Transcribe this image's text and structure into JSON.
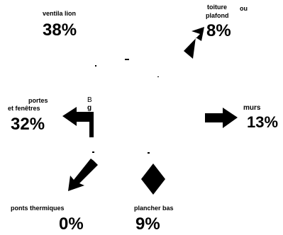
{
  "segments": [
    {
      "id": "ventilation",
      "label": "ventila lion",
      "value": "38%"
    },
    {
      "id": "roof",
      "label_line1": "toiture",
      "label_or": "ou",
      "label_line2": "plafond",
      "value": "8%"
    },
    {
      "id": "doors-windows",
      "label_line1": "portes",
      "label_line2": "et fenêtres",
      "value": "32%"
    },
    {
      "id": "walls",
      "label": "murs",
      "value": "13%"
    },
    {
      "id": "thermal-bridges",
      "label": "ponts thermiques",
      "value": "0%"
    },
    {
      "id": "floor",
      "label": "plancher bas",
      "value": "9%"
    }
  ],
  "stray_letters": [
    "B",
    "g"
  ],
  "icons": [
    "arrow-up-right-icon",
    "arrow-right-icon",
    "arrow-left-icon",
    "arrow-down-left-icon",
    "diamond-icon"
  ],
  "colors": {
    "ink": "#000000",
    "background": "#ffffff"
  }
}
